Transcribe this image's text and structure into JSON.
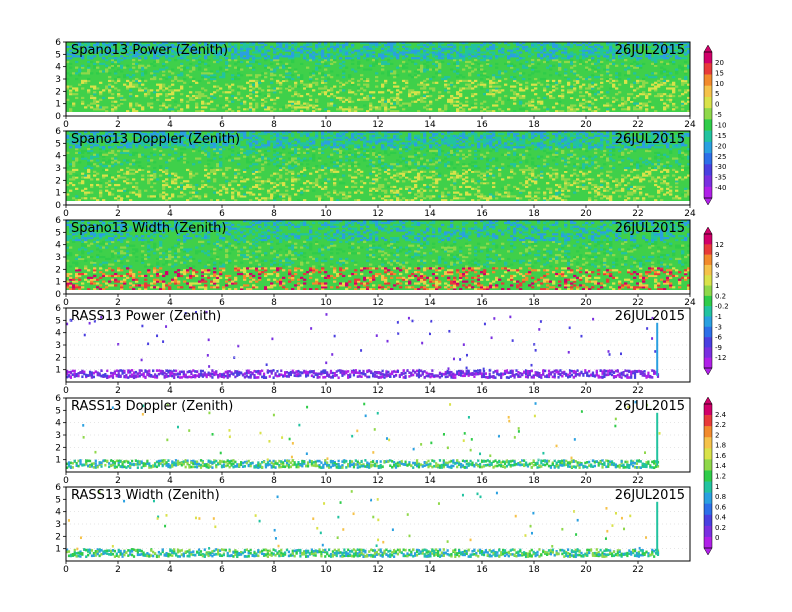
{
  "chart_data": [
    {
      "type": "heatmap",
      "title": "Spano13 Power (Zenith)",
      "date": "26JUL2015",
      "xlim": [
        0,
        24
      ],
      "ylim": [
        0,
        6
      ],
      "x_ticks": [
        "0",
        "2",
        "4",
        "6",
        "8",
        "10",
        "12",
        "14",
        "16",
        "18",
        "20",
        "22",
        "24"
      ],
      "y_ticks": [
        "0",
        "1",
        "2",
        "3",
        "4",
        "5",
        "6"
      ],
      "pattern": "dense",
      "colorbar_group": 0
    },
    {
      "type": "heatmap",
      "title": "Spano13 Doppler (Zenith)",
      "date": "26JUL2015",
      "xlim": [
        0,
        24
      ],
      "ylim": [
        0,
        6
      ],
      "x_ticks": [
        "0",
        "2",
        "4",
        "6",
        "8",
        "10",
        "12",
        "14",
        "16",
        "18",
        "20",
        "22",
        "24"
      ],
      "y_ticks": [
        "0",
        "1",
        "2",
        "3",
        "4",
        "5",
        "6"
      ],
      "pattern": "dense",
      "colorbar_group": 0
    },
    {
      "type": "heatmap",
      "title": "Spano13 Width (Zenith)",
      "date": "26JUL2015",
      "xlim": [
        0,
        24
      ],
      "ylim": [
        0,
        6
      ],
      "x_ticks": [
        "0",
        "2",
        "4",
        "6",
        "8",
        "10",
        "12",
        "14",
        "16",
        "18",
        "20",
        "22",
        "24"
      ],
      "y_ticks": [
        "0",
        "1",
        "2",
        "3",
        "4",
        "5",
        "6"
      ],
      "pattern": "dense-width",
      "colorbar_group": 1
    },
    {
      "type": "heatmap",
      "title": "RASS13 Power (Zenith)",
      "date": "26JUL2015",
      "xlim": [
        0,
        24
      ],
      "ylim": [
        0,
        6
      ],
      "x_ticks": [
        "0",
        "2",
        "4",
        "6",
        "8",
        "10",
        "12",
        "14",
        "16",
        "18",
        "20",
        "22"
      ],
      "y_ticks": [
        "1",
        "2",
        "3",
        "4",
        "5",
        "6"
      ],
      "pattern": "sparse",
      "colorbar_group": 1
    },
    {
      "type": "heatmap",
      "title": "RASS13 Doppler (Zenith)",
      "date": "26JUL2015",
      "xlim": [
        0,
        24
      ],
      "ylim": [
        0,
        6
      ],
      "x_ticks": [
        "0",
        "2",
        "4",
        "6",
        "8",
        "10",
        "12",
        "14",
        "16",
        "18",
        "20",
        "22"
      ],
      "y_ticks": [
        "1",
        "2",
        "3",
        "4",
        "5",
        "6"
      ],
      "pattern": "sparse",
      "colorbar_group": 2
    },
    {
      "type": "heatmap",
      "title": "RASS13 Width (Zenith)",
      "date": "26JUL2015",
      "xlim": [
        0,
        24
      ],
      "ylim": [
        0,
        6
      ],
      "x_ticks": [
        "0",
        "2",
        "4",
        "6",
        "8",
        "10",
        "12",
        "14",
        "16",
        "18",
        "20",
        "22"
      ],
      "y_ticks": [
        "1",
        "2",
        "3",
        "4",
        "5",
        "6"
      ],
      "pattern": "sparse",
      "colorbar_group": 2
    }
  ],
  "colorbars": [
    {
      "labels": [
        "20",
        "15",
        "10",
        "5",
        "0",
        "-5",
        "-10",
        "-15",
        "-20",
        "-25",
        "-30",
        "-35",
        "-40"
      ],
      "colors": [
        "#d1006a",
        "#e83a3a",
        "#f28a2c",
        "#f5c24a",
        "#d9e24a",
        "#8fd84a",
        "#2fcc4a",
        "#22c3a0",
        "#2aa0e0",
        "#2d6fe8",
        "#4a3fe0",
        "#7a2fe0",
        "#b020e8"
      ]
    },
    {
      "labels": [
        "12",
        "9",
        "6",
        "3",
        "1",
        "0.2",
        "-0.2",
        "-1",
        "-3",
        "-6",
        "-9",
        "-12"
      ],
      "colors": [
        "#d1006a",
        "#e83a3a",
        "#f28a2c",
        "#f5c24a",
        "#d9e24a",
        "#8fd84a",
        "#2fcc4a",
        "#22c3a0",
        "#2aa0e0",
        "#2d6fe8",
        "#4a3fe0",
        "#7a2fe0",
        "#b020e8"
      ]
    },
    {
      "labels": [
        "2.4",
        "2.2",
        "2",
        "1.8",
        "1.6",
        "1.4",
        "1.2",
        "1",
        "0.8",
        "0.6",
        "0.4",
        "0.2",
        "0"
      ],
      "colors": [
        "#d1006a",
        "#e83a3a",
        "#f28a2c",
        "#f5c24a",
        "#d9e24a",
        "#8fd84a",
        "#2fcc4a",
        "#22c3a0",
        "#2aa0e0",
        "#2d6fe8",
        "#4a3fe0",
        "#7a2fe0",
        "#b020e8"
      ]
    }
  ]
}
